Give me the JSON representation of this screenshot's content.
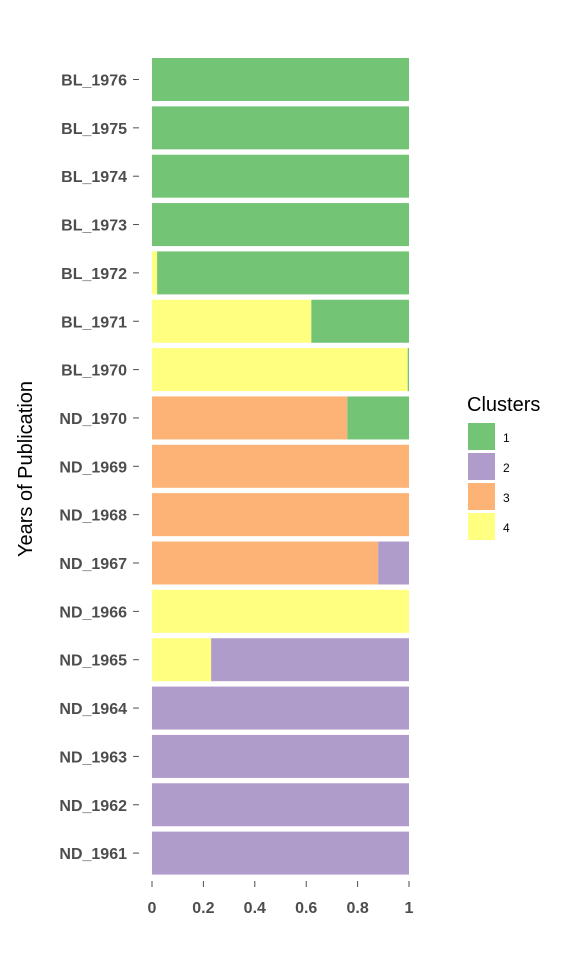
{
  "chart_data": {
    "type": "bar",
    "orientation": "horizontal",
    "stacked": true,
    "ylabel": "Years of Publication",
    "xlabel": "",
    "xlim": [
      0,
      1
    ],
    "xticks": [
      "0",
      "0.2",
      "0.4",
      "0.6",
      "0.8",
      "1"
    ],
    "grid": false,
    "legend": {
      "title": "Clusters",
      "placement": "right"
    },
    "categories": [
      "BL_1976",
      "BL_1975",
      "BL_1974",
      "BL_1973",
      "BL_1972",
      "BL_1971",
      "BL_1970",
      "ND_1970",
      "ND_1969",
      "ND_1968",
      "ND_1967",
      "ND_1966",
      "ND_1965",
      "ND_1964",
      "ND_1963",
      "ND_1962",
      "ND_1961"
    ],
    "series": [
      {
        "name": "1",
        "color": "#74c476",
        "values": [
          1,
          1,
          1,
          1,
          0.98,
          0.38,
          0.005,
          0.24,
          0,
          0,
          0,
          0,
          0,
          0,
          0,
          0,
          0
        ]
      },
      {
        "name": "2",
        "color": "#b09ccb",
        "values": [
          0,
          0,
          0,
          0,
          0,
          0,
          0,
          0,
          0,
          0,
          0.12,
          0,
          0.77,
          1,
          1,
          1,
          1
        ]
      },
      {
        "name": "3",
        "color": "#fdb375",
        "values": [
          0,
          0,
          0,
          0,
          0,
          0,
          0,
          0.76,
          1,
          1,
          0.88,
          0,
          0,
          0,
          0,
          0,
          0
        ]
      },
      {
        "name": "4",
        "color": "#ffff80",
        "values": [
          0,
          0,
          0,
          0,
          0.02,
          0.62,
          0.995,
          0,
          0,
          0,
          0,
          1,
          0.23,
          0,
          0,
          0,
          0
        ]
      }
    ],
    "stack_order": [
      "4",
      "3",
      "2",
      "1"
    ]
  }
}
